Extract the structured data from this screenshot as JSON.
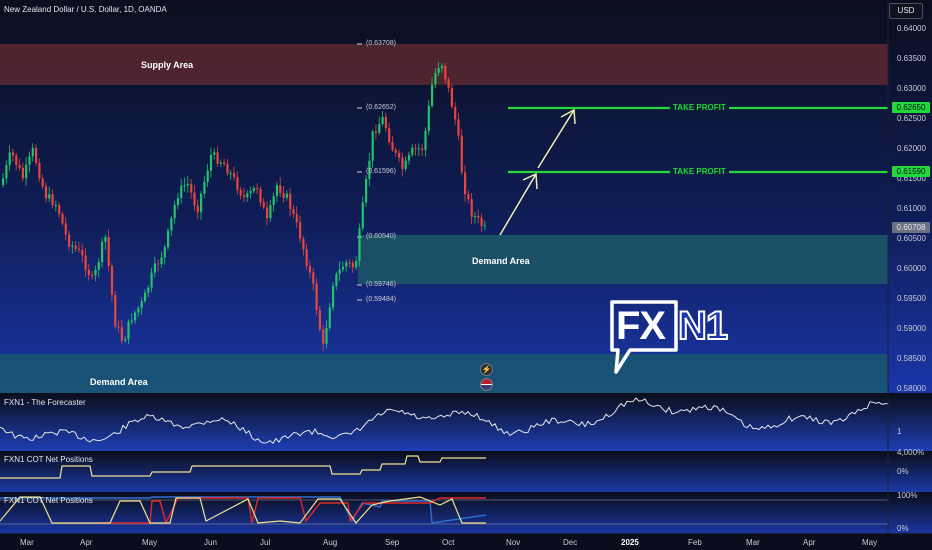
{
  "header": {
    "symbol_title": "New Zealand Dollar / U.S. Dollar, 1D, OANDA",
    "currency_button": "USD"
  },
  "price_axis": {
    "ticks": [
      "0.64000",
      "0.63500",
      "0.63000",
      "0.62500",
      "0.62000",
      "0.61500",
      "0.61000",
      "0.60500",
      "0.60000",
      "0.59500",
      "0.59000",
      "0.58500",
      "0.58000"
    ],
    "tags": [
      {
        "label": "0.62650",
        "color": "#22d83a"
      },
      {
        "label": "0.61590",
        "color": "#22d83a"
      },
      {
        "label": "0.60708",
        "color": "#6b7282"
      }
    ]
  },
  "time_axis": {
    "labels": [
      "Mar",
      "Apr",
      "May",
      "Jun",
      "Jul",
      "Aug",
      "Sep",
      "Oct",
      "Nov",
      "Dec",
      "2025",
      "Feb",
      "Mar",
      "Apr",
      "May"
    ]
  },
  "zones": {
    "supply": {
      "label": "Supply Area",
      "color": "#5a2730"
    },
    "demand_upper": {
      "label": "Demand Area",
      "color": "#1c5866"
    },
    "demand_lower": {
      "label": "Demand Area",
      "color": "#1b5870"
    }
  },
  "level_labels": [
    "(0.63708)",
    "(0.62652)",
    "(0.61596)",
    "(0.60540)",
    "(0.59746)",
    "(0.59484)"
  ],
  "take_profit": [
    {
      "label": "TAKE PROFIT",
      "price": "0.62650"
    },
    {
      "label": "TAKE PROFIT",
      "price": "0.61590"
    }
  ],
  "logo": {
    "text_a": "FX",
    "text_b": "N1"
  },
  "indicators": [
    {
      "title": "FXN1 - The Forecaster",
      "axis": [
        "1"
      ]
    },
    {
      "title": "FXN1 COT Net Positions",
      "axis": [
        "4,000%",
        "0%"
      ]
    },
    {
      "title": "FXN1 COT Net Positions",
      "axis": [
        "100%",
        "0%"
      ]
    }
  ],
  "icons": [
    "lightning-icon",
    "flag-icon"
  ],
  "colors": {
    "bull": "#1fc46b",
    "bear": "#e8453c",
    "take_profit": "#22d83a",
    "arrow": "#f1f0b0",
    "forecaster_line": "#e6e6e6",
    "cot_yellow": "#f2e38a",
    "cot_red": "#e02828",
    "cot_blue": "#2f6fd0"
  }
}
